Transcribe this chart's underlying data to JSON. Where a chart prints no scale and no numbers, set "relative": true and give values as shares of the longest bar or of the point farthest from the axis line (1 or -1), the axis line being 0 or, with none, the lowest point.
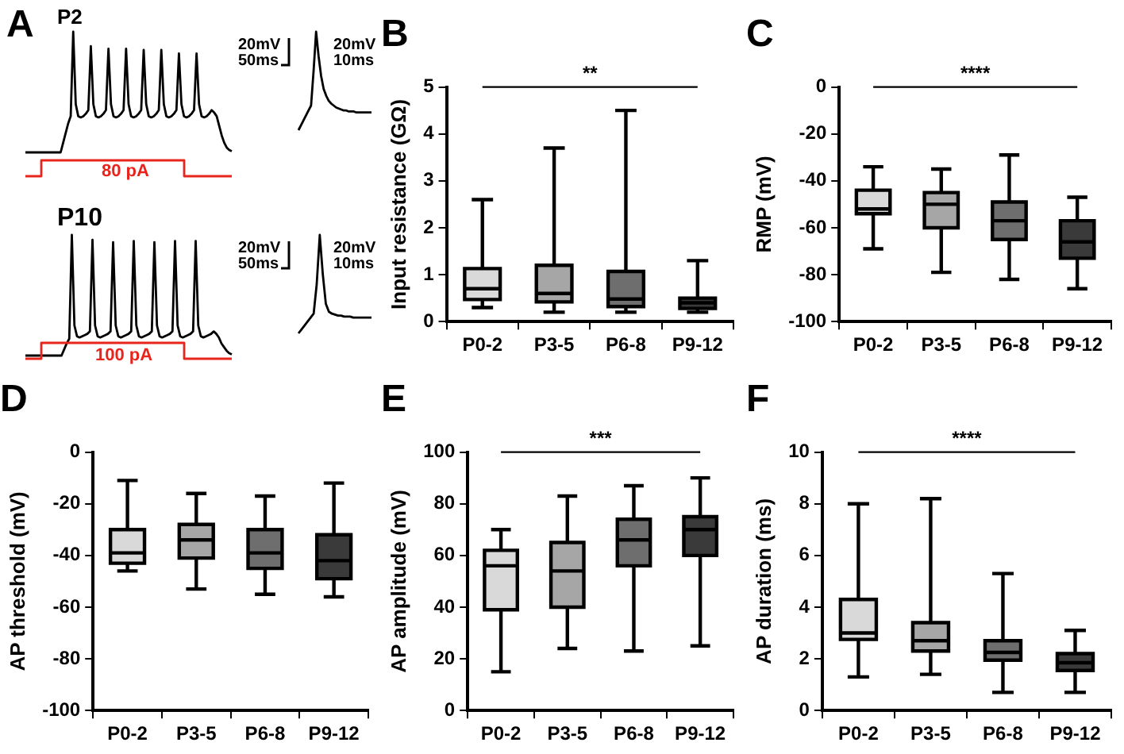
{
  "chart_data": [
    {
      "type": "line",
      "title": "A",
      "relative": true,
      "color": "#000000",
      "annotations": [
        "P2",
        "20mV",
        "50ms"
      ],
      "categories": [
        null,
        null,
        null,
        null,
        null,
        null,
        null,
        null,
        null,
        null,
        null,
        null,
        null,
        null,
        null,
        null,
        null,
        null,
        null,
        null,
        null,
        null,
        null,
        null,
        null,
        null,
        null,
        null,
        null,
        null,
        null,
        null,
        null,
        null,
        null,
        null,
        null,
        null,
        null,
        null,
        null,
        null,
        null,
        null,
        null,
        null,
        null,
        null,
        null,
        null,
        null,
        null,
        null,
        null,
        null,
        null,
        null,
        null,
        null,
        null,
        null,
        null,
        null,
        null,
        null,
        null,
        null,
        null,
        null,
        null,
        null,
        null,
        null,
        null,
        null,
        null,
        null,
        null,
        null,
        null,
        null,
        null,
        null
      ],
      "values": [
        0,
        0,
        0,
        0,
        0,
        0,
        0,
        0,
        0,
        0,
        0,
        0,
        0,
        0,
        0,
        0.08,
        0.16,
        0.24,
        0.3,
        1,
        0.4,
        0.3,
        0.29,
        0.3,
        0.32,
        0.35,
        0.88,
        0.4,
        0.3,
        0.29,
        0.3,
        0.32,
        0.35,
        0.86,
        0.4,
        0.3,
        0.29,
        0.3,
        0.32,
        0.35,
        0.86,
        0.4,
        0.3,
        0.29,
        0.3,
        0.32,
        0.35,
        0.85,
        0.4,
        0.3,
        0.29,
        0.3,
        0.32,
        0.35,
        0.85,
        0.4,
        0.3,
        0.29,
        0.3,
        0.32,
        0.35,
        0.82,
        0.4,
        0.3,
        0.29,
        0.3,
        0.32,
        0.35,
        0.82,
        0.4,
        0.3,
        0.29,
        0.3,
        0.32,
        0.35,
        0.33,
        0.3,
        0.22,
        0.14,
        0.08,
        0.04,
        0.02,
        0.01
      ]
    },
    {
      "type": "line",
      "relative": true,
      "color": "#000000",
      "annotations": [
        "20mV",
        "10ms"
      ],
      "categories": [
        null,
        null,
        null,
        null,
        null,
        null,
        null,
        null,
        null,
        null,
        null,
        null,
        null,
        null,
        null,
        null,
        null,
        null,
        null,
        null,
        null,
        null,
        null,
        null,
        null,
        null,
        null,
        null,
        null,
        null
      ],
      "values": [
        0,
        0.05,
        0.1,
        0.15,
        0.2,
        0.25,
        0.6,
        1,
        0.75,
        0.55,
        0.42,
        0.35,
        0.3,
        0.27,
        0.25,
        0.23,
        0.22,
        0.21,
        0.2,
        0.2,
        0.19,
        0.19,
        0.19,
        0.18,
        0.18,
        0.18,
        0.18,
        0.18,
        0.18,
        0.18
      ]
    },
    {
      "type": "step",
      "relative": true,
      "color": "#e8241c",
      "annotations": [
        "80 pA"
      ],
      "categories": [
        null,
        null,
        null,
        null,
        null,
        null,
        null,
        null,
        null,
        null,
        null,
        null,
        null,
        null
      ],
      "values": [
        0,
        0,
        1,
        1,
        1,
        1,
        1,
        1,
        1,
        1,
        1,
        0,
        0,
        0
      ]
    },
    {
      "type": "line",
      "relative": true,
      "color": "#000000",
      "annotations": [
        "P10",
        "20mV",
        "50ms"
      ],
      "categories": [
        null,
        null,
        null,
        null,
        null,
        null,
        null,
        null,
        null,
        null,
        null,
        null,
        null,
        null,
        null,
        null,
        null,
        null,
        null,
        null,
        null,
        null,
        null,
        null,
        null,
        null,
        null,
        null,
        null,
        null,
        null,
        null,
        null,
        null,
        null,
        null,
        null,
        null,
        null,
        null,
        null,
        null,
        null,
        null,
        null,
        null,
        null,
        null,
        null,
        null,
        null,
        null,
        null,
        null,
        null,
        null,
        null,
        null,
        null,
        null,
        null,
        null,
        null,
        null,
        null,
        null,
        null,
        null,
        null,
        null,
        null,
        null,
        null,
        null,
        null,
        null,
        null,
        null,
        null,
        null,
        null
      ],
      "values": [
        0,
        0,
        0,
        0,
        0,
        0,
        0,
        0,
        0,
        0,
        0,
        0,
        0,
        0,
        0,
        0.05,
        0.1,
        0.14,
        1,
        0.25,
        0.16,
        0.15,
        0.16,
        0.17,
        0.18,
        0.2,
        0.96,
        0.25,
        0.16,
        0.15,
        0.16,
        0.17,
        0.18,
        0.2,
        0.94,
        0.25,
        0.16,
        0.15,
        0.16,
        0.17,
        0.18,
        0.2,
        0.95,
        0.25,
        0.16,
        0.15,
        0.16,
        0.17,
        0.18,
        0.2,
        0.94,
        0.25,
        0.16,
        0.15,
        0.16,
        0.17,
        0.18,
        0.2,
        0.95,
        0.25,
        0.16,
        0.15,
        0.16,
        0.17,
        0.18,
        0.2,
        0.95,
        0.25,
        0.16,
        0.15,
        0.16,
        0.17,
        0.18,
        0.2,
        0.18,
        0.15,
        0.1,
        0.07,
        0.04,
        0.02,
        0.01
      ]
    },
    {
      "type": "line",
      "relative": true,
      "color": "#000000",
      "annotations": [
        "20mV",
        "10ms"
      ],
      "categories": [
        null,
        null,
        null,
        null,
        null,
        null,
        null,
        null,
        null,
        null,
        null,
        null,
        null,
        null,
        null,
        null,
        null,
        null,
        null,
        null,
        null,
        null,
        null,
        null,
        null
      ],
      "values": [
        0,
        0.04,
        0.08,
        0.12,
        0.16,
        0.2,
        0.5,
        1,
        0.6,
        0.3,
        0.22,
        0.2,
        0.19,
        0.18,
        0.18,
        0.17,
        0.17,
        0.17,
        0.16,
        0.16,
        0.16,
        0.16,
        0.16,
        0.16,
        0.16
      ]
    },
    {
      "type": "step",
      "relative": true,
      "color": "#e8241c",
      "annotations": [
        "100 pA"
      ],
      "categories": [
        null,
        null,
        null,
        null,
        null,
        null,
        null,
        null,
        null,
        null,
        null,
        null,
        null,
        null
      ],
      "values": [
        0,
        0,
        1,
        1,
        1,
        1,
        1,
        1,
        1,
        1,
        1,
        0,
        0,
        0
      ]
    },
    {
      "type": "box",
      "title": "B",
      "ylabel": "Input resistance (GΩ)",
      "categories": [
        "P0-2",
        "P3-5",
        "P6-8",
        "P9-12"
      ],
      "colors": [
        "#d9d9d9",
        "#a6a6a6",
        "#6e6e6e",
        "#3a3a3a"
      ],
      "ylim": [
        0,
        5
      ],
      "yticks": [
        0,
        1,
        2,
        3,
        4,
        5
      ],
      "grid": false,
      "annotations": [
        "**"
      ],
      "boxes": [
        {
          "low": 0.3,
          "q1": 0.47,
          "median": 0.7,
          "q3": 1.13,
          "high": 2.6
        },
        {
          "low": 0.2,
          "q1": 0.42,
          "median": 0.6,
          "q3": 1.2,
          "high": 3.7
        },
        {
          "low": 0.2,
          "q1": 0.32,
          "median": 0.48,
          "q3": 1.07,
          "high": 4.5
        },
        {
          "low": 0.2,
          "q1": 0.28,
          "median": 0.4,
          "q3": 0.5,
          "high": 1.3
        }
      ]
    },
    {
      "type": "box",
      "title": "C",
      "ylabel": "RMP (mV)",
      "categories": [
        "P0-2",
        "P3-5",
        "P6-8",
        "P9-12"
      ],
      "colors": [
        "#d9d9d9",
        "#a6a6a6",
        "#6e6e6e",
        "#3a3a3a"
      ],
      "ylim": [
        -100,
        0
      ],
      "yticks": [
        -100,
        -80,
        -60,
        -40,
        -20,
        0
      ],
      "grid": false,
      "annotations": [
        "****"
      ],
      "boxes": [
        {
          "low": -69,
          "q1": -54,
          "median": -52,
          "q3": -44,
          "high": -34
        },
        {
          "low": -79,
          "q1": -60,
          "median": -50,
          "q3": -45,
          "high": -35
        },
        {
          "low": -82,
          "q1": -65,
          "median": -57,
          "q3": -49,
          "high": -29
        },
        {
          "low": -86,
          "q1": -73,
          "median": -66,
          "q3": -57,
          "high": -47
        }
      ]
    },
    {
      "type": "box",
      "title": "D",
      "ylabel": "AP threshold (mV)",
      "categories": [
        "P0-2",
        "P3-5",
        "P6-8",
        "P9-12"
      ],
      "colors": [
        "#d9d9d9",
        "#a6a6a6",
        "#6e6e6e",
        "#3a3a3a"
      ],
      "ylim": [
        -100,
        0
      ],
      "yticks": [
        -100,
        -80,
        -60,
        -40,
        -20,
        0
      ],
      "grid": false,
      "boxes": [
        {
          "low": -46,
          "q1": -43,
          "median": -39,
          "q3": -30,
          "high": -11
        },
        {
          "low": -53,
          "q1": -41,
          "median": -34,
          "q3": -28,
          "high": -16
        },
        {
          "low": -55,
          "q1": -45,
          "median": -39,
          "q3": -30,
          "high": -17
        },
        {
          "low": -56,
          "q1": -49,
          "median": -42,
          "q3": -32,
          "high": -12
        }
      ]
    },
    {
      "type": "box",
      "title": "E",
      "ylabel": "AP amplitude (mV)",
      "categories": [
        "P0-2",
        "P3-5",
        "P6-8",
        "P9-12"
      ],
      "colors": [
        "#d9d9d9",
        "#a6a6a6",
        "#6e6e6e",
        "#3a3a3a"
      ],
      "ylim": [
        0,
        100
      ],
      "yticks": [
        0,
        20,
        40,
        60,
        80,
        100
      ],
      "grid": false,
      "annotations": [
        "***"
      ],
      "boxes": [
        {
          "low": 15,
          "q1": 39,
          "median": 56,
          "q3": 62,
          "high": 70
        },
        {
          "low": 24,
          "q1": 40,
          "median": 54,
          "q3": 65,
          "high": 83
        },
        {
          "low": 23,
          "q1": 56,
          "median": 66,
          "q3": 74,
          "high": 87
        },
        {
          "low": 25,
          "q1": 60,
          "median": 70,
          "q3": 75,
          "high": 90
        }
      ]
    },
    {
      "type": "box",
      "title": "F",
      "ylabel": "AP duration (ms)",
      "categories": [
        "P0-2",
        "P3-5",
        "P6-8",
        "P9-12"
      ],
      "colors": [
        "#d9d9d9",
        "#a6a6a6",
        "#6e6e6e",
        "#3a3a3a"
      ],
      "ylim": [
        0,
        10
      ],
      "yticks": [
        0,
        2,
        4,
        6,
        8,
        10
      ],
      "grid": false,
      "annotations": [
        "****"
      ],
      "boxes": [
        {
          "low": 1.3,
          "q1": 2.75,
          "median": 3.0,
          "q3": 4.3,
          "high": 8.0
        },
        {
          "low": 1.4,
          "q1": 2.3,
          "median": 2.7,
          "q3": 3.4,
          "high": 8.2
        },
        {
          "low": 0.7,
          "q1": 1.95,
          "median": 2.25,
          "q3": 2.7,
          "high": 5.3
        },
        {
          "low": 0.7,
          "q1": 1.55,
          "median": 1.85,
          "q3": 2.2,
          "high": 3.1
        }
      ]
    }
  ]
}
